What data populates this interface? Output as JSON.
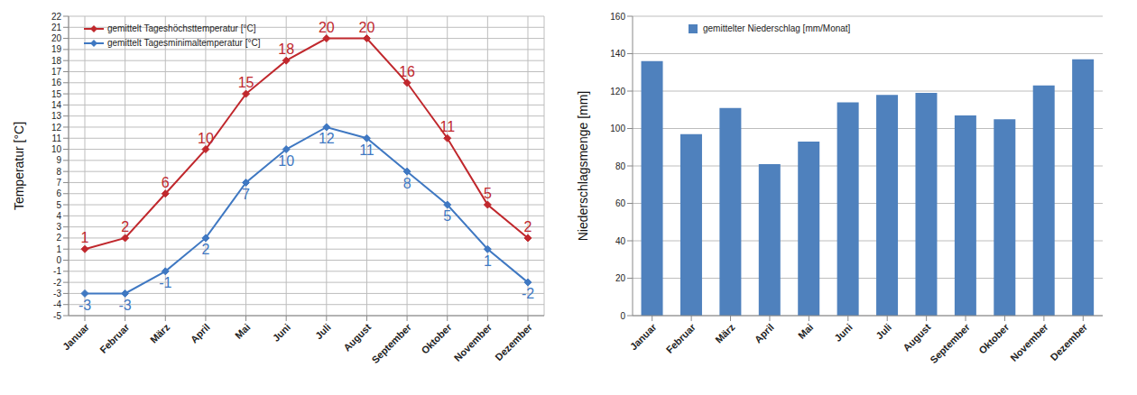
{
  "chart_data": [
    {
      "type": "line",
      "categories": [
        "Januar",
        "Februar",
        "März",
        "April",
        "Mai",
        "Juni",
        "Juli",
        "August",
        "September",
        "Oktober",
        "November",
        "Dezember"
      ],
      "series": [
        {
          "name": "gemittelt Tageshöchsttemperatur [°C]",
          "color": "#c0282d",
          "marker": "diamond",
          "values": [
            1,
            2,
            6,
            10,
            15,
            18,
            20,
            20,
            16,
            11,
            5,
            2
          ]
        },
        {
          "name": "gemittelt Tagesminimaltemperatur [°C]",
          "color": "#3f78c2",
          "marker": "diamond",
          "values": [
            -3,
            -3,
            -1,
            2,
            7,
            10,
            12,
            11,
            8,
            5,
            1,
            -2
          ]
        }
      ],
      "ylabel": "Temperatur [°C]",
      "ylim": [
        -5,
        22
      ],
      "yticks": [
        -5,
        -4,
        -3,
        -2,
        -1,
        0,
        1,
        2,
        3,
        4,
        5,
        6,
        7,
        8,
        9,
        10,
        11,
        12,
        13,
        14,
        15,
        16,
        17,
        18,
        19,
        20,
        21,
        22
      ],
      "grid": true,
      "legend": "upper left",
      "data_labels": true
    },
    {
      "type": "bar",
      "categories": [
        "Januar",
        "Februar",
        "März",
        "April",
        "Mai",
        "Juni",
        "Juli",
        "August",
        "September",
        "Oktober",
        "November",
        "Dezember"
      ],
      "series": [
        {
          "name": "gemittelter Niederschlag [mm/Monat]",
          "color": "#4f81bd",
          "values": [
            136,
            97,
            111,
            81,
            93,
            114,
            118,
            119,
            107,
            105,
            123,
            137
          ]
        }
      ],
      "ylabel": "Niederschlagsmenge [mm]",
      "ylim": [
        0,
        160
      ],
      "yticks": [
        0,
        20,
        40,
        60,
        80,
        100,
        120,
        140,
        160
      ],
      "grid": true,
      "legend": "upper left"
    }
  ]
}
